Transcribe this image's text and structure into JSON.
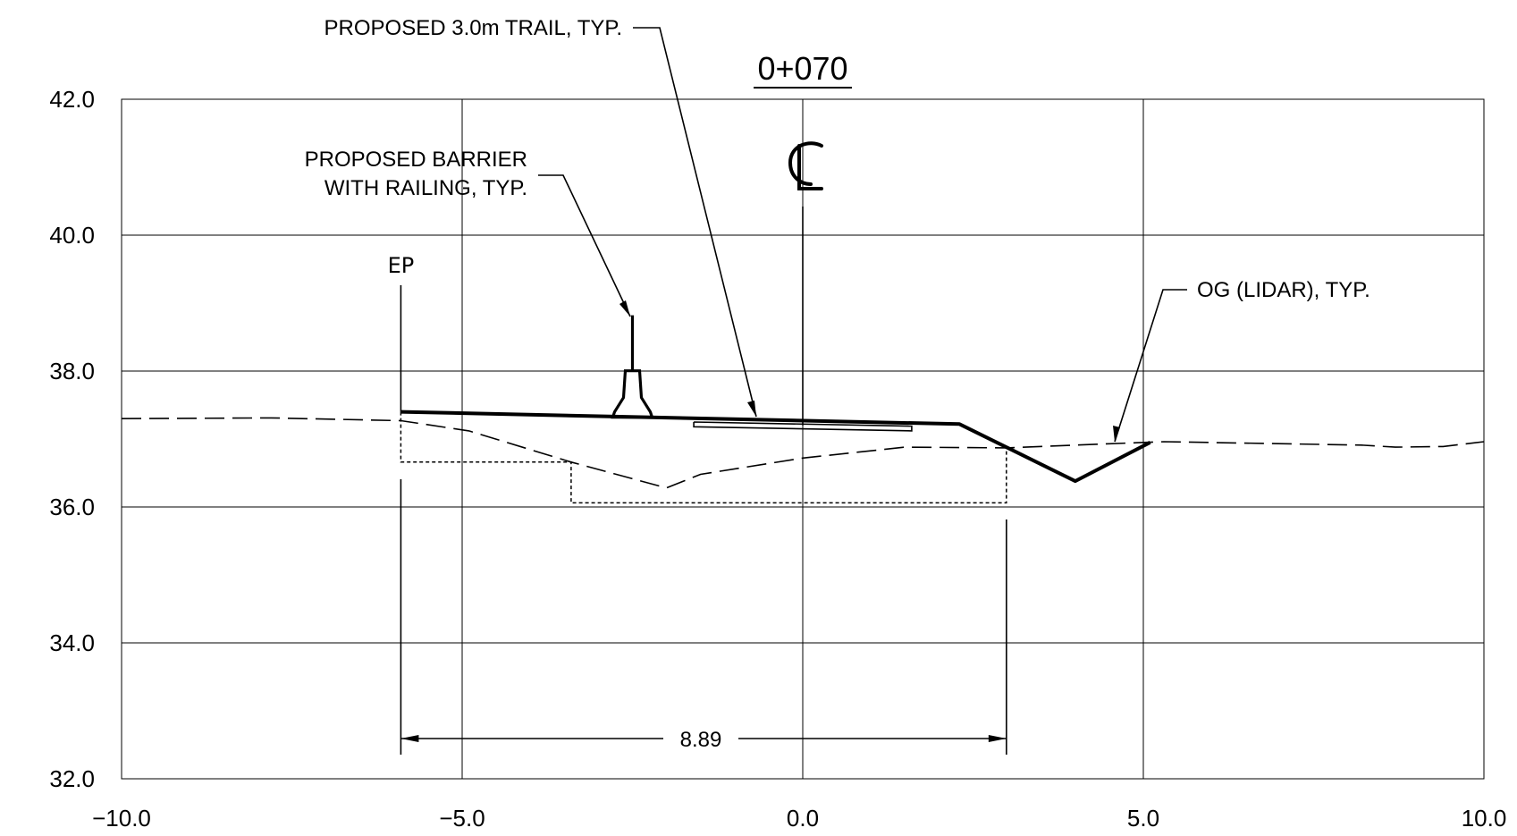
{
  "station": "0+070",
  "centerline_symbol": "℄",
  "labels": {
    "trail": "PROPOSED 3.0m TRAIL, TYP.",
    "barrier_line1": "PROPOSED BARRIER",
    "barrier_line2": "WITH RAILING, TYP.",
    "og": "OG (LIDAR), TYP.",
    "ep": "EP"
  },
  "dimension": {
    "value": "8.89",
    "from_offset": -5.9,
    "to_offset": 2.99
  },
  "chart_data": {
    "type": "line",
    "title": "0+070",
    "xlabel": "",
    "ylabel": "",
    "xlim": [
      -10.0,
      10.0
    ],
    "ylim": [
      32.0,
      42.0
    ],
    "grid": true,
    "x_ticks": [
      -10.0,
      -5.0,
      0.0,
      5.0,
      10.0
    ],
    "x_tick_labels": [
      "−10.0",
      "−5.0",
      "0.0",
      "5.0",
      "10.0"
    ],
    "y_ticks": [
      32.0,
      34.0,
      36.0,
      38.0,
      40.0,
      42.0
    ],
    "y_tick_labels": [
      "32.0",
      "34.0",
      "36.0",
      "38.0",
      "40.0",
      "42.0"
    ],
    "series": [
      {
        "role": "original-ground",
        "style": "dashed",
        "x": [
          -10.0,
          -7.8,
          -5.9,
          -4.9,
          -3.4,
          -2.0,
          -1.5,
          0.0,
          1.5,
          3.0,
          4.5,
          5.3,
          8.2,
          8.7,
          9.4,
          10.0
        ],
        "y": [
          37.3,
          37.31,
          37.27,
          37.12,
          36.66,
          36.28,
          36.48,
          36.72,
          36.88,
          36.87,
          36.93,
          36.96,
          36.91,
          36.88,
          36.89,
          36.96
        ]
      },
      {
        "role": "proposed-surface",
        "style": "heavy",
        "x": [
          -5.9,
          2.3,
          4.0,
          5.1
        ],
        "y": [
          37.4,
          37.22,
          36.38,
          36.95
        ]
      },
      {
        "role": "trail",
        "style": "thin",
        "x": [
          -1.6,
          1.6,
          1.6,
          -1.6,
          -1.6
        ],
        "y": [
          37.25,
          37.19,
          37.12,
          37.18,
          37.25
        ]
      },
      {
        "role": "subgrade",
        "style": "dotted",
        "x": [
          -5.9,
          -5.9,
          -3.4,
          -3.4,
          2.99,
          2.99
        ],
        "y": [
          37.4,
          36.66,
          36.66,
          36.06,
          36.06,
          36.9
        ]
      }
    ],
    "barrier": {
      "x_center": -2.5,
      "base_y": 37.32,
      "rail_top_y": 38.82
    }
  }
}
